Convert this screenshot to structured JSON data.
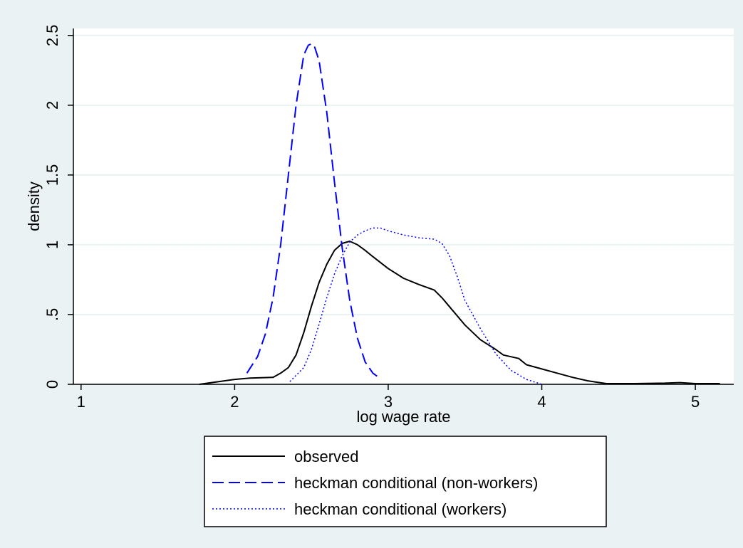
{
  "chart_data": {
    "type": "line",
    "title": "",
    "xlabel": "log wage rate",
    "ylabel": "density",
    "xlim": [
      0.95,
      5.25
    ],
    "ylim": [
      0,
      2.55
    ],
    "x_ticks": [
      1,
      2,
      3,
      4,
      5
    ],
    "x_tick_labels": [
      "1",
      "2",
      "3",
      "4",
      "5"
    ],
    "y_ticks": [
      0,
      0.5,
      1,
      1.5,
      2,
      2.5
    ],
    "y_tick_labels": [
      "0",
      ".5",
      "1",
      "1.5",
      "2",
      "2.5"
    ],
    "grid": true,
    "legend_position": "bottom",
    "series": [
      {
        "name": "observed",
        "color": "#000000",
        "style": "solid",
        "x": [
          1.77,
          1.9,
          2.0,
          2.1,
          2.25,
          2.3,
          2.35,
          2.4,
          2.45,
          2.5,
          2.55,
          2.6,
          2.65,
          2.7,
          2.75,
          2.8,
          2.85,
          2.9,
          3.0,
          3.1,
          3.2,
          3.3,
          3.35,
          3.4,
          3.5,
          3.6,
          3.7,
          3.75,
          3.85,
          3.9,
          4.0,
          4.1,
          4.2,
          4.3,
          4.42,
          4.6,
          4.8,
          4.9,
          5.0,
          5.16
        ],
        "y": [
          0.0,
          0.02,
          0.035,
          0.045,
          0.05,
          0.08,
          0.12,
          0.21,
          0.37,
          0.56,
          0.73,
          0.86,
          0.96,
          1.01,
          1.025,
          1.0,
          0.96,
          0.915,
          0.83,
          0.76,
          0.715,
          0.675,
          0.62,
          0.555,
          0.425,
          0.32,
          0.25,
          0.21,
          0.185,
          0.14,
          0.11,
          0.08,
          0.05,
          0.025,
          0.005,
          0.005,
          0.008,
          0.012,
          0.005,
          0.005
        ]
      },
      {
        "name": "heckman conditional (non-workers)",
        "color": "#0000ff",
        "style": "dashed",
        "x": [
          2.08,
          2.15,
          2.2,
          2.25,
          2.3,
          2.35,
          2.4,
          2.45,
          2.48,
          2.5,
          2.52,
          2.55,
          2.6,
          2.65,
          2.7,
          2.75,
          2.8,
          2.85,
          2.9,
          2.95
        ],
        "y": [
          0.08,
          0.2,
          0.36,
          0.62,
          1.0,
          1.5,
          2.0,
          2.36,
          2.43,
          2.44,
          2.42,
          2.32,
          1.95,
          1.45,
          0.98,
          0.6,
          0.33,
          0.16,
          0.08,
          0.04
        ]
      },
      {
        "name": "heckman conditional (workers)",
        "color": "#0000ff",
        "style": "dotted",
        "x": [
          2.36,
          2.45,
          2.5,
          2.55,
          2.6,
          2.65,
          2.7,
          2.75,
          2.8,
          2.85,
          2.9,
          2.95,
          3.0,
          3.1,
          3.2,
          3.3,
          3.35,
          3.4,
          3.45,
          3.5,
          3.6,
          3.7,
          3.8,
          3.9,
          4.0
        ],
        "y": [
          0.02,
          0.12,
          0.25,
          0.43,
          0.62,
          0.79,
          0.92,
          1.02,
          1.07,
          1.1,
          1.12,
          1.12,
          1.1,
          1.07,
          1.05,
          1.04,
          1.01,
          0.92,
          0.77,
          0.6,
          0.4,
          0.22,
          0.1,
          0.035,
          0.0
        ]
      }
    ]
  }
}
